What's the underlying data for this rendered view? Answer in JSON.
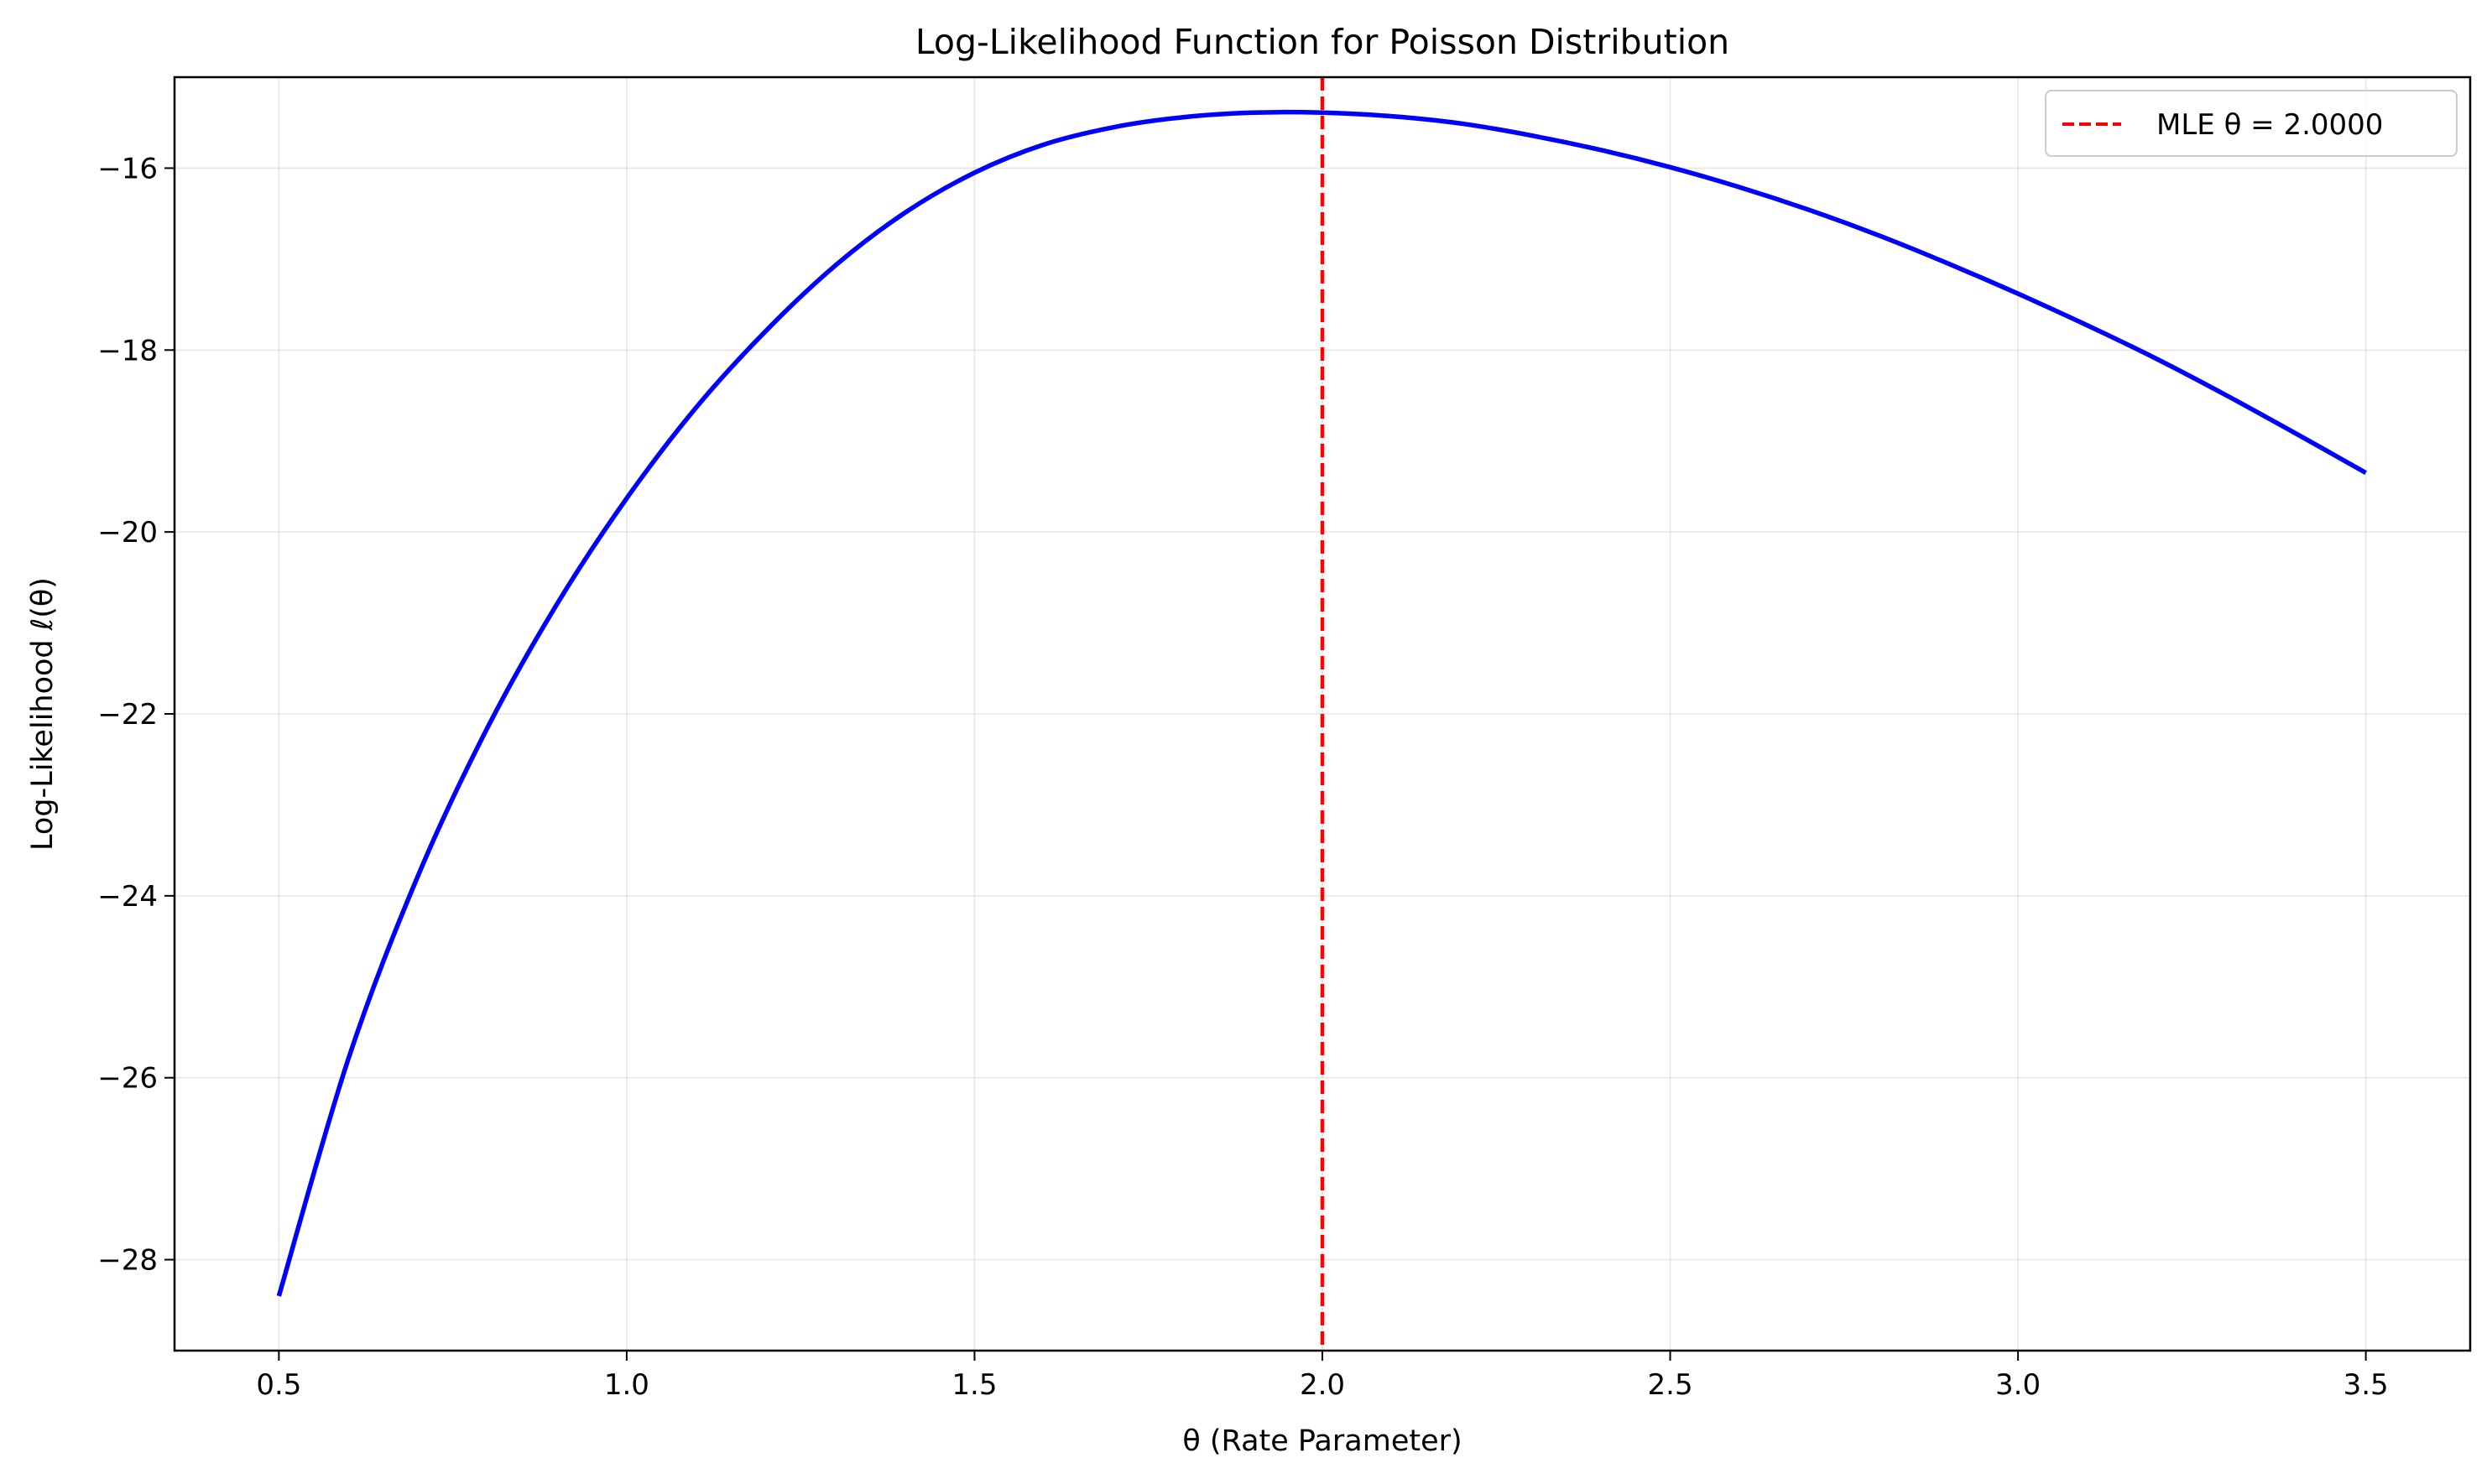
{
  "chart_data": {
    "type": "line",
    "title": "Log-Likelihood Function for Poisson Distribution",
    "xlabel": "θ (Rate Parameter)",
    "ylabel": "Log-Likelihood ℓ(θ)",
    "xlim": [
      0.35,
      3.65
    ],
    "ylim": [
      -29.0,
      -15.0
    ],
    "xticks": [
      0.5,
      1.0,
      1.5,
      2.0,
      2.5,
      3.0,
      3.5
    ],
    "xtick_labels": [
      "0.5",
      "1.0",
      "1.5",
      "2.0",
      "2.5",
      "3.0",
      "3.5"
    ],
    "yticks": [
      -16,
      -18,
      -20,
      -22,
      -24,
      -26,
      -28
    ],
    "ytick_labels": [
      "−16",
      "−18",
      "−20",
      "−22",
      "−24",
      "−26",
      "−28"
    ],
    "grid": true,
    "legend_position": "top-right",
    "series": [
      {
        "color": "#0000ff",
        "style": "solid",
        "x": [
          0.5,
          0.6,
          0.7,
          0.8,
          0.9,
          1.0,
          1.1,
          1.2,
          1.3,
          1.4,
          1.5,
          1.6,
          1.7,
          1.8,
          1.9,
          2.0,
          2.1,
          2.2,
          2.3,
          2.4,
          2.5,
          2.6,
          2.7,
          2.8,
          2.9,
          3.0,
          3.1,
          3.2,
          3.3,
          3.4,
          3.5
        ],
        "y": [
          -28.4,
          -25.79,
          -23.78,
          -22.15,
          -20.79,
          -19.63,
          -18.63,
          -17.79,
          -17.07,
          -16.49,
          -16.05,
          -15.74,
          -15.55,
          -15.44,
          -15.39,
          -15.39,
          -15.43,
          -15.51,
          -15.64,
          -15.8,
          -15.99,
          -16.21,
          -16.46,
          -16.74,
          -17.05,
          -17.38,
          -17.73,
          -18.1,
          -18.5,
          -18.92,
          -19.35
        ]
      }
    ],
    "reference_lines": [
      {
        "orientation": "vertical",
        "x": 2.0,
        "color": "#ff0000",
        "style": "dashed",
        "name": "MLE θ = 2.0000"
      }
    ]
  }
}
